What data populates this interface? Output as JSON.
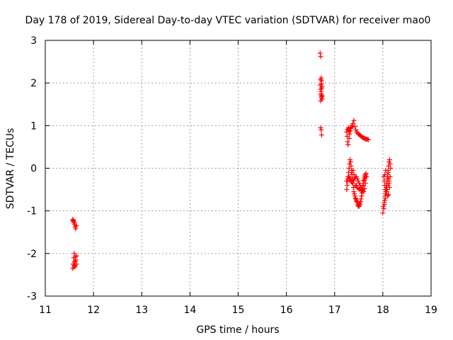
{
  "chart_data": {
    "type": "scatter",
    "title": "Day 178 of 2019, Sidereal Day-to-day VTEC variation (SDTVAR) for receiver mao0",
    "xlabel": "GPS time / hours",
    "ylabel": "SDTVAR / TECUs",
    "xlim": [
      11,
      19
    ],
    "ylim": [
      -3,
      3
    ],
    "x_ticks": [
      11,
      12,
      13,
      14,
      15,
      16,
      17,
      18,
      19
    ],
    "y_ticks": [
      -3,
      -2,
      -1,
      0,
      1,
      2,
      3
    ],
    "x_tick_labels": [
      "11",
      "12",
      "13",
      "14",
      "15",
      "16",
      "17",
      "18",
      "19"
    ],
    "y_tick_labels": [
      "-3",
      "-2",
      "-1",
      "0",
      "1",
      "2",
      "3"
    ],
    "grid": true,
    "marker": "+",
    "color": "#ff0000",
    "series": [
      {
        "name": "SDTVAR",
        "x": [
          11.57,
          11.58,
          11.59,
          11.6,
          11.61,
          11.62,
          11.63,
          11.64,
          11.57,
          11.58,
          11.59,
          11.6,
          11.61,
          11.62,
          11.63,
          11.64,
          11.6,
          11.62,
          11.63,
          11.65,
          11.58,
          11.6,
          16.7,
          16.71,
          16.72,
          16.73,
          16.7,
          16.71,
          16.72,
          16.73,
          16.71,
          16.72,
          16.73,
          16.74,
          16.72,
          16.73,
          16.74,
          16.71,
          16.73,
          16.71,
          16.73,
          16.74,
          16.72,
          17.25,
          17.26,
          17.27,
          17.28,
          17.3,
          17.32,
          17.34,
          17.36,
          17.38,
          17.4,
          17.42,
          17.44,
          17.46,
          17.48,
          17.5,
          17.52,
          17.54,
          17.56,
          17.58,
          17.6,
          17.62,
          17.64,
          17.66,
          17.68,
          17.7,
          17.27,
          17.28,
          17.29,
          17.3,
          17.31,
          17.32,
          17.33,
          17.34,
          17.25,
          17.26,
          17.27,
          17.28,
          17.29,
          17.3,
          17.31,
          17.32,
          17.33,
          17.34,
          17.35,
          17.36,
          17.37,
          17.38,
          17.39,
          17.4,
          17.41,
          17.42,
          17.43,
          17.44,
          17.45,
          17.46,
          17.47,
          17.48,
          17.49,
          17.5,
          17.51,
          17.52,
          17.53,
          17.54,
          17.55,
          17.56,
          17.57,
          17.58,
          17.59,
          17.6,
          17.61,
          17.62,
          17.63,
          17.64,
          17.65,
          17.25,
          17.27,
          17.29,
          17.31,
          17.33,
          17.35,
          17.37,
          17.39,
          17.41,
          17.43,
          17.45,
          17.47,
          17.49,
          17.51,
          17.53,
          17.55,
          17.57,
          17.59,
          17.61,
          17.63,
          17.65,
          17.35,
          17.38,
          17.4,
          17.45,
          17.5,
          17.55,
          17.6,
          17.62,
          17.64,
          17.66,
          17.43,
          17.47,
          17.52,
          17.58,
          18.0,
          18.02,
          18.03,
          18.04,
          18.05,
          18.06,
          18.07,
          18.08,
          18.09,
          18.1,
          18.11,
          18.12,
          18.13,
          18.14,
          18.15,
          18.16,
          18.02,
          18.03,
          18.04,
          18.05,
          18.06,
          18.07,
          18.08,
          18.09,
          18.1,
          18.11,
          18.12,
          18.13,
          18.14,
          18.01,
          18.03,
          18.05,
          18.07,
          18.09,
          18.11,
          18.13,
          18.15,
          18.04,
          18.06,
          18.08,
          18.1,
          18.12
        ],
        "y": [
          -2.35,
          -2.25,
          -2.1,
          -2.0,
          -2.2,
          -2.3,
          -2.15,
          -2.05,
          -1.2,
          -1.22,
          -1.25,
          -1.28,
          -1.32,
          -1.38,
          -1.42,
          -1.35,
          -2.28,
          -2.18,
          -2.08,
          -2.25,
          -1.24,
          -2.32,
          2.7,
          2.62,
          2.12,
          2.05,
          1.95,
          1.85,
          1.75,
          1.65,
          1.58,
          1.72,
          1.88,
          1.92,
          1.8,
          1.68,
          1.62,
          0.95,
          0.78,
          2.08,
          1.98,
          1.7,
          0.9,
          0.85,
          0.75,
          0.62,
          0.55,
          0.7,
          0.88,
          0.95,
          1.0,
          1.05,
          1.12,
          0.98,
          0.9,
          0.85,
          0.82,
          0.8,
          0.78,
          0.76,
          0.74,
          0.72,
          0.71,
          0.7,
          0.69,
          0.68,
          0.68,
          0.67,
          0.9,
          0.92,
          0.95,
          0.85,
          0.8,
          0.88,
          0.93,
          0.96,
          -0.5,
          -0.4,
          -0.3,
          -0.2,
          -0.1,
          0.0,
          0.1,
          0.2,
          0.15,
          0.05,
          -0.05,
          -0.15,
          -0.25,
          -0.35,
          -0.45,
          -0.55,
          -0.6,
          -0.65,
          -0.7,
          -0.72,
          -0.75,
          -0.78,
          -0.8,
          -0.85,
          -0.88,
          -0.9,
          -0.88,
          -0.85,
          -0.82,
          -0.78,
          -0.72,
          -0.65,
          -0.58,
          -0.5,
          -0.42,
          -0.35,
          -0.28,
          -0.22,
          -0.18,
          -0.15,
          -0.12,
          -0.3,
          -0.25,
          -0.2,
          -0.22,
          -0.28,
          -0.32,
          -0.35,
          -0.3,
          -0.25,
          -0.22,
          -0.2,
          -0.25,
          -0.3,
          -0.35,
          -0.4,
          -0.45,
          -0.5,
          -0.4,
          -0.3,
          -0.25,
          -0.2,
          -0.1,
          -0.05,
          -0.15,
          -0.4,
          -0.48,
          -0.52,
          -0.55,
          -0.48,
          -0.35,
          -0.2,
          -0.42,
          -0.46,
          -0.5,
          -0.53,
          -1.05,
          -0.95,
          -0.85,
          -0.75,
          -0.65,
          -0.55,
          -0.45,
          -0.35,
          -0.25,
          -0.15,
          -0.05,
          0.05,
          0.15,
          0.2,
          0.1,
          0.0,
          -0.2,
          -0.3,
          -0.4,
          -0.5,
          -0.6,
          -0.5,
          -0.4,
          -0.3,
          -0.2,
          -0.1,
          -0.25,
          -0.35,
          -0.45,
          -0.9,
          -0.8,
          -0.7,
          -0.6,
          -0.5,
          -0.4,
          -0.3,
          -0.2,
          -0.15,
          -0.05,
          -0.55,
          -0.65,
          -0.62
        ]
      }
    ]
  }
}
